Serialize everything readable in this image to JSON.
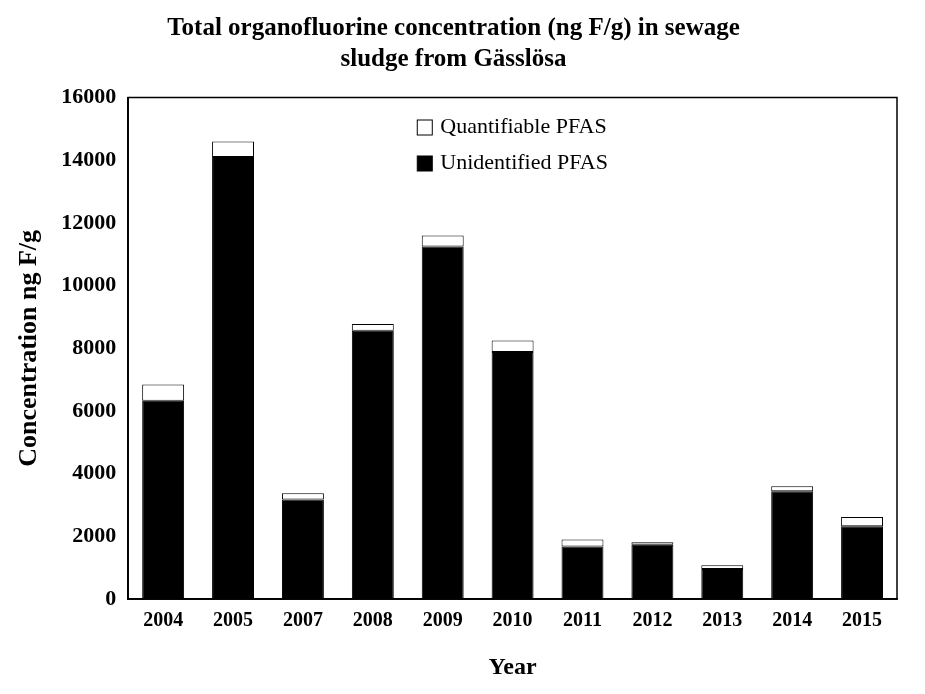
{
  "chart_data": {
    "type": "bar",
    "title": [
      "Total organofluorine concentration (ng F/g) in sewage",
      "sludge from Gässlösa"
    ],
    "x_label": "Year",
    "y_label": "Concentration ng F/g",
    "categories": [
      "2004",
      "2005",
      "2007",
      "2008",
      "2009",
      "2010",
      "2011",
      "2012",
      "2013",
      "2014",
      "2015"
    ],
    "series": [
      {
        "name": "Unidentified PFAS",
        "color": "#000000",
        "values": [
          6330,
          14100,
          3180,
          8560,
          11250,
          7880,
          1680,
          1740,
          960,
          3440,
          2330
        ]
      },
      {
        "name": "Quantifiable PFAS",
        "color": "#ffffff",
        "values": [
          520,
          500,
          200,
          220,
          350,
          370,
          220,
          80,
          120,
          160,
          290
        ]
      }
    ],
    "stacked": true,
    "ylim": [
      0,
      16000
    ],
    "yticks": [
      0,
      2000,
      4000,
      6000,
      8000,
      10000,
      12000,
      14000,
      16000
    ],
    "grid": false,
    "legend": "top"
  }
}
